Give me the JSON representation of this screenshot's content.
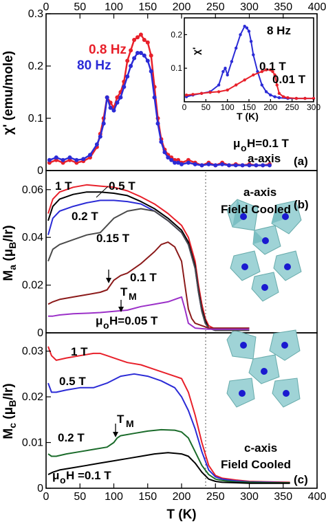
{
  "chart_data": [
    {
      "panel_label": "(a)",
      "type": "scatter",
      "xlabel_top": "",
      "top_ticks": [
        "0",
        "50",
        "100",
        "150",
        "200",
        "250",
        "300",
        "350",
        "400"
      ],
      "ylabel": "χ' (emu/mole)",
      "y_ticks": [
        "0",
        "0.1",
        "0.2",
        "0.3"
      ],
      "xlim": [
        0,
        400
      ],
      "ylim": [
        0,
        0.3
      ],
      "annotations": [
        "μoH=0.1 T",
        "a-axis"
      ],
      "series": [
        {
          "name": "0.8 Hz",
          "color": "#e8202a",
          "x": [
            5,
            15,
            25,
            35,
            45,
            55,
            65,
            75,
            80,
            85,
            90,
            95,
            100,
            105,
            110,
            115,
            120,
            125,
            130,
            135,
            140,
            145,
            150,
            155,
            160,
            165,
            170,
            175,
            180,
            185,
            190,
            195,
            200,
            210,
            220,
            230,
            240,
            250,
            260,
            270,
            280,
            290,
            300,
            310,
            320,
            330
          ],
          "y": [
            0.015,
            0.02,
            0.015,
            0.02,
            0.015,
            0.018,
            0.025,
            0.045,
            0.07,
            0.1,
            0.14,
            0.13,
            0.12,
            0.14,
            0.15,
            0.17,
            0.21,
            0.23,
            0.25,
            0.255,
            0.26,
            0.25,
            0.245,
            0.22,
            0.16,
            0.1,
            0.06,
            0.04,
            0.03,
            0.025,
            0.02,
            0.02,
            0.015,
            0.02,
            0.015,
            0.01,
            0.015,
            0.01,
            0.015,
            0.01,
            0.012,
            0.01,
            0.012,
            0.01,
            0.01,
            0.012
          ]
        },
        {
          "name": "80 Hz",
          "color": "#2b2bd6",
          "x": [
            5,
            15,
            25,
            35,
            45,
            55,
            65,
            75,
            80,
            85,
            90,
            95,
            100,
            105,
            110,
            115,
            120,
            125,
            130,
            135,
            140,
            145,
            150,
            155,
            160,
            165,
            170,
            175,
            180,
            185,
            190,
            195,
            200,
            210,
            220,
            230,
            240,
            250,
            260,
            270,
            280,
            290,
            300,
            310,
            320,
            330
          ],
          "y": [
            0.02,
            0.025,
            0.02,
            0.025,
            0.02,
            0.022,
            0.03,
            0.05,
            0.065,
            0.09,
            0.14,
            0.12,
            0.115,
            0.13,
            0.14,
            0.16,
            0.18,
            0.2,
            0.215,
            0.225,
            0.225,
            0.22,
            0.21,
            0.19,
            0.14,
            0.09,
            0.055,
            0.035,
            0.025,
            0.02,
            0.015,
            0.015,
            0.012,
            0.015,
            0.012,
            0.01,
            0.012,
            0.01,
            0.012,
            0.01,
            0.01,
            0.01,
            0.01,
            0.01,
            0.01,
            0.01
          ]
        }
      ]
    },
    {
      "panel_label": "inset",
      "type": "scatter",
      "title": "8 Hz",
      "ylabel": "χ'",
      "xlabel": "T (K)",
      "x_ticks": [
        "0",
        "50",
        "100",
        "150",
        "200",
        "250",
        "300"
      ],
      "y_ticks": [
        "0.1",
        "0.2"
      ],
      "xlim": [
        0,
        300
      ],
      "ylim": [
        0,
        0.25
      ],
      "series": [
        {
          "name": "0.1 T",
          "color": "#2b2bd6",
          "x": [
            5,
            20,
            40,
            60,
            80,
            90,
            95,
            100,
            110,
            120,
            130,
            140,
            145,
            150,
            155,
            160,
            170,
            180,
            190,
            200,
            210,
            220,
            240,
            260,
            280,
            300
          ],
          "y": [
            0.015,
            0.02,
            0.025,
            0.03,
            0.05,
            0.09,
            0.1,
            0.08,
            0.12,
            0.16,
            0.2,
            0.225,
            0.22,
            0.21,
            0.18,
            0.14,
            0.09,
            0.05,
            0.03,
            0.02,
            0.015,
            0.012,
            0.01,
            0.01,
            0.01,
            0.01
          ]
        },
        {
          "name": "0.01 T",
          "color": "#e8202a",
          "x": [
            5,
            20,
            40,
            60,
            80,
            100,
            120,
            140,
            160,
            180,
            190,
            200,
            205,
            210,
            215,
            220,
            230,
            240,
            260,
            280,
            300
          ],
          "y": [
            0.02,
            0.022,
            0.025,
            0.028,
            0.03,
            0.035,
            0.05,
            0.065,
            0.08,
            0.09,
            0.095,
            0.095,
            0.09,
            0.08,
            0.05,
            0.025,
            0.015,
            0.012,
            0.01,
            0.01,
            0.01
          ]
        }
      ]
    },
    {
      "panel_label": "(b)",
      "type": "line",
      "ylabel": "Ma (μB/Ir)",
      "y_ticks": [
        "0",
        "0.02",
        "0.04",
        "0.06"
      ],
      "xlim": [
        0,
        400
      ],
      "ylim": [
        0,
        0.068
      ],
      "annotations": [
        "a-axis",
        "Field Cooled",
        "TM",
        "μoH=0.05 T"
      ],
      "series": [
        {
          "name": "1 T",
          "color": "#e8202a",
          "x": [
            3,
            10,
            20,
            40,
            60,
            80,
            100,
            120,
            140,
            160,
            180,
            200,
            210,
            220,
            225,
            230,
            235,
            240,
            250,
            270,
            300
          ],
          "y": [
            0.05,
            0.056,
            0.059,
            0.061,
            0.062,
            0.0615,
            0.061,
            0.0595,
            0.057,
            0.054,
            0.05,
            0.045,
            0.04,
            0.03,
            0.02,
            0.012,
            0.006,
            0.003,
            0.0015,
            0.001,
            0.001
          ]
        },
        {
          "name": "0.5 T",
          "color": "#000000",
          "x": [
            3,
            10,
            20,
            40,
            60,
            80,
            100,
            120,
            140,
            160,
            180,
            200,
            210,
            220,
            225,
            230,
            235,
            240,
            250,
            270,
            300
          ],
          "y": [
            0.047,
            0.053,
            0.056,
            0.058,
            0.059,
            0.059,
            0.0585,
            0.0575,
            0.055,
            0.052,
            0.048,
            0.043,
            0.038,
            0.028,
            0.018,
            0.01,
            0.005,
            0.002,
            0.001,
            0.001,
            0.001
          ]
        },
        {
          "name": "0.2 T",
          "color": "#2b2bd6",
          "x": [
            3,
            10,
            20,
            40,
            60,
            80,
            100,
            120,
            140,
            160,
            180,
            200,
            210,
            220,
            225,
            230,
            235,
            240,
            250,
            270,
            300
          ],
          "y": [
            0.041,
            0.048,
            0.051,
            0.053,
            0.0545,
            0.0555,
            0.0555,
            0.055,
            0.054,
            0.051,
            0.047,
            0.042,
            0.037,
            0.027,
            0.017,
            0.009,
            0.004,
            0.002,
            0.001,
            0.001,
            0.001
          ]
        },
        {
          "name": "0.15 T",
          "color": "#4a4a4a",
          "x": [
            3,
            10,
            20,
            40,
            60,
            80,
            90,
            100,
            120,
            140,
            160,
            180,
            200,
            210,
            220,
            225,
            230,
            235,
            240,
            250,
            270,
            300
          ],
          "y": [
            0.03,
            0.035,
            0.037,
            0.039,
            0.041,
            0.042,
            0.045,
            0.048,
            0.051,
            0.052,
            0.051,
            0.047,
            0.042,
            0.037,
            0.027,
            0.017,
            0.009,
            0.004,
            0.002,
            0.001,
            0.001,
            0.001
          ]
        },
        {
          "name": "0.1 T",
          "color": "#8b1a1a",
          "x": [
            3,
            10,
            20,
            40,
            60,
            80,
            90,
            100,
            110,
            120,
            140,
            160,
            170,
            180,
            190,
            200,
            205,
            210,
            215,
            220,
            230,
            240,
            260,
            300
          ],
          "y": [
            0.012,
            0.013,
            0.014,
            0.015,
            0.016,
            0.017,
            0.018,
            0.022,
            0.024,
            0.025,
            0.029,
            0.034,
            0.037,
            0.038,
            0.036,
            0.03,
            0.02,
            0.01,
            0.006,
            0.004,
            0.003,
            0.002,
            0.002,
            0.002
          ]
        },
        {
          "name": "0.05 T",
          "color": "#9b30c8",
          "x": [
            3,
            10,
            20,
            40,
            60,
            80,
            100,
            120,
            140,
            160,
            180,
            190,
            200,
            205,
            210,
            220,
            240,
            260,
            300
          ],
          "y": [
            0.007,
            0.007,
            0.0075,
            0.008,
            0.0082,
            0.0085,
            0.009,
            0.0095,
            0.011,
            0.012,
            0.013,
            0.014,
            0.015,
            0.01,
            0.004,
            0.002,
            0.0015,
            0.0015,
            0.0015
          ]
        }
      ]
    },
    {
      "panel_label": "(c)",
      "type": "line",
      "ylabel": "Mc (μB/Ir)",
      "y_ticks": [
        "0",
        "0.01",
        "0.02",
        "0.03"
      ],
      "xlabel": "T (K)",
      "x_ticks": [
        "0",
        "50",
        "100",
        "150",
        "200",
        "250",
        "300",
        "350",
        "400"
      ],
      "xlim": [
        0,
        400
      ],
      "ylim": [
        0,
        0.034
      ],
      "annotations": [
        "c-axis",
        "Field Cooled",
        "TM",
        "μoH =0.1 T"
      ],
      "series": [
        {
          "name": "1 T",
          "color": "#e8202a",
          "x": [
            3,
            8,
            15,
            30,
            50,
            70,
            80,
            90,
            100,
            110,
            120,
            140,
            160,
            180,
            200,
            210,
            220,
            230,
            240,
            250,
            260,
            280,
            300,
            330,
            360
          ],
          "y": [
            0.031,
            0.029,
            0.028,
            0.0285,
            0.029,
            0.0295,
            0.0295,
            0.029,
            0.0285,
            0.028,
            0.0275,
            0.027,
            0.026,
            0.025,
            0.024,
            0.021,
            0.016,
            0.01,
            0.005,
            0.0028,
            0.0022,
            0.0018,
            0.0015,
            0.0014,
            0.0013
          ]
        },
        {
          "name": "0.5 T",
          "color": "#2b2bd6",
          "x": [
            3,
            8,
            15,
            30,
            50,
            70,
            90,
            110,
            130,
            150,
            170,
            190,
            200,
            210,
            220,
            230,
            240,
            250,
            260,
            280,
            300,
            330,
            360
          ],
          "y": [
            0.023,
            0.021,
            0.021,
            0.0215,
            0.022,
            0.022,
            0.023,
            0.0245,
            0.025,
            0.0245,
            0.0235,
            0.022,
            0.02,
            0.017,
            0.013,
            0.008,
            0.004,
            0.0025,
            0.002,
            0.0016,
            0.0014,
            0.0013,
            0.0012
          ]
        },
        {
          "name": "0.2 T",
          "color": "#1a6b2a",
          "x": [
            3,
            8,
            15,
            30,
            50,
            70,
            90,
            100,
            105,
            110,
            130,
            150,
            170,
            190,
            200,
            210,
            220,
            230,
            240,
            250,
            260,
            280,
            300,
            330,
            360
          ],
          "y": [
            0.0075,
            0.007,
            0.007,
            0.0075,
            0.008,
            0.0085,
            0.009,
            0.01,
            0.011,
            0.0115,
            0.012,
            0.0125,
            0.0128,
            0.0127,
            0.0123,
            0.011,
            0.008,
            0.005,
            0.003,
            0.002,
            0.0017,
            0.0014,
            0.0013,
            0.0012,
            0.0012
          ]
        },
        {
          "name": "0.1 T",
          "color": "#000000",
          "x": [
            3,
            10,
            20,
            40,
            60,
            80,
            100,
            120,
            140,
            160,
            180,
            200,
            210,
            220,
            230,
            240,
            250,
            260,
            280,
            300,
            330,
            360
          ],
          "y": [
            0.003,
            0.0035,
            0.004,
            0.0045,
            0.005,
            0.0055,
            0.006,
            0.0065,
            0.007,
            0.0075,
            0.0078,
            0.0075,
            0.007,
            0.0055,
            0.0035,
            0.002,
            0.0015,
            0.0013,
            0.0012,
            0.0011,
            0.0011,
            0.0011
          ]
        }
      ]
    }
  ],
  "labels": {
    "panel_a": "(a)",
    "panel_b": "(b)",
    "panel_c": "(c)",
    "a_legend_08": "0.8 Hz",
    "a_legend_80": "80 Hz",
    "a_field_mu": "μ",
    "a_field_o": "o",
    "a_field_rest": "H=0.1 T",
    "a_axis": "a-axis",
    "inset_title": "8 Hz",
    "inset_01": "0.1 T",
    "inset_001": "0.01 T",
    "inset_xlabel": "T (K)",
    "inset_ylabel": "χ'",
    "b_1T": "1 T",
    "b_05T": "0.5 T",
    "b_02T": "0.2 T",
    "b_015T": "0.15 T",
    "b_01T": "0.1 T",
    "b_TM": "T",
    "b_TM_sub": "M",
    "b_field_mu": "μ",
    "b_field_o": "o",
    "b_field_rest": "H=0.05 T",
    "b_aaxis": "a-axis",
    "b_fc": "Field Cooled",
    "c_1T": "1 T",
    "c_05T": "0.5 T",
    "c_02T": "0.2 T",
    "c_TM": "T",
    "c_TM_sub": "M",
    "c_field_mu": "μ",
    "c_field_o": "o",
    "c_field_rest": "H =0.1 T",
    "c_caxis": "c-axis",
    "c_fc": "Field Cooled",
    "ya_label": "χ' (emu/mole)",
    "yb_M": "M",
    "yb_sub": "a",
    "yb_rest": " (μ",
    "yb_sub2": "B",
    "yb_end": "/Ir)",
    "yc_M": "M",
    "yc_sub": "c",
    "yc_rest": " (μ",
    "yc_sub2": "B",
    "yc_end": "/Ir)",
    "x_title": "T (K)"
  }
}
